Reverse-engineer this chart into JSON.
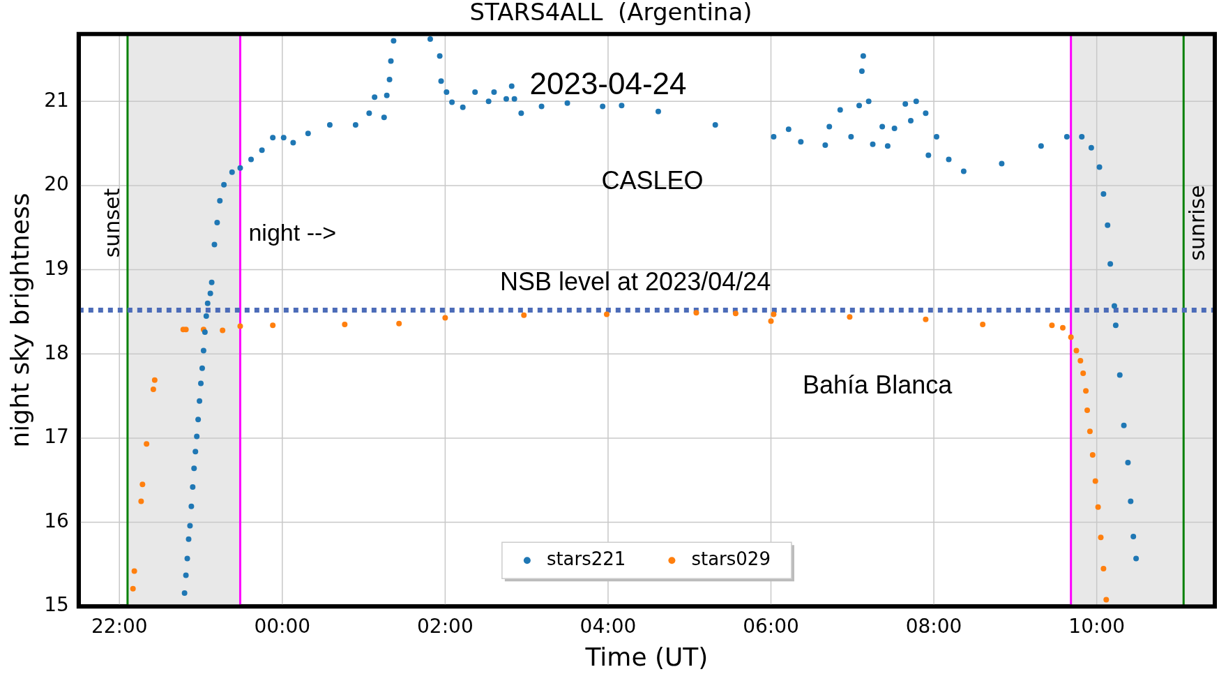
{
  "chart_data": {
    "type": "scatter",
    "title": "STARS4ALL  (Argentina)",
    "xlabel": "Time (UT)",
    "ylabel": "night sky brightness",
    "xlim": [
      "2023-04-23T21:30",
      "2023-04-24T11:27"
    ],
    "ylim": [
      15,
      21.8
    ],
    "xticks": [
      {
        "value": "2023-04-23T22:00",
        "label": "22:00"
      },
      {
        "value": "2023-04-24T00:00",
        "label": "00:00"
      },
      {
        "value": "2023-04-24T02:00",
        "label": "02:00"
      },
      {
        "value": "2023-04-24T04:00",
        "label": "04:00"
      },
      {
        "value": "2023-04-24T06:00",
        "label": "06:00"
      },
      {
        "value": "2023-04-24T08:00",
        "label": "08:00"
      },
      {
        "value": "2023-04-24T10:00",
        "label": "10:00"
      }
    ],
    "yticks": [
      15,
      16,
      17,
      18,
      19,
      20,
      21
    ],
    "grid": true,
    "legend": "bottom",
    "marker": "circle",
    "series": [
      {
        "name": "stars221",
        "color": "#1f77b4",
        "x": [
          "2023-04-23T22:48",
          "2023-04-23T22:49",
          "2023-04-23T22:50",
          "2023-04-23T22:51",
          "2023-04-23T22:52",
          "2023-04-23T22:53",
          "2023-04-23T22:54",
          "2023-04-23T22:55",
          "2023-04-23T22:56",
          "2023-04-23T22:57",
          "2023-04-23T22:58",
          "2023-04-23T22:59",
          "2023-04-23T23:00",
          "2023-04-23T23:01",
          "2023-04-23T23:02",
          "2023-04-23T23:03",
          "2023-04-23T23:04",
          "2023-04-23T23:05",
          "2023-04-23T23:07",
          "2023-04-23T23:08",
          "2023-04-23T23:10",
          "2023-04-23T23:12",
          "2023-04-23T23:14",
          "2023-04-23T23:17",
          "2023-04-23T23:23",
          "2023-04-23T23:29",
          "2023-04-23T23:37",
          "2023-04-23T23:45",
          "2023-04-23T23:53",
          "2023-04-24T00:01",
          "2023-04-24T00:08",
          "2023-04-24T00:19",
          "2023-04-24T00:35",
          "2023-04-24T00:54",
          "2023-04-24T01:04",
          "2023-04-24T01:08",
          "2023-04-24T01:15",
          "2023-04-24T01:17",
          "2023-04-24T01:19",
          "2023-04-24T01:20",
          "2023-04-24T01:22",
          "2023-04-24T01:49",
          "2023-04-24T01:56",
          "2023-04-24T01:57",
          "2023-04-24T02:01",
          "2023-04-24T02:05",
          "2023-04-24T02:13",
          "2023-04-24T02:22",
          "2023-04-24T02:32",
          "2023-04-24T02:36",
          "2023-04-24T02:45",
          "2023-04-24T02:49",
          "2023-04-24T02:51",
          "2023-04-24T02:56",
          "2023-04-24T03:11",
          "2023-04-24T03:30",
          "2023-04-24T03:56",
          "2023-04-24T04:10",
          "2023-04-24T04:37",
          "2023-04-24T05:19",
          "2023-04-24T06:02",
          "2023-04-24T06:13",
          "2023-04-24T06:22",
          "2023-04-24T06:40",
          "2023-04-24T06:43",
          "2023-04-24T06:51",
          "2023-04-24T06:59",
          "2023-04-24T07:05",
          "2023-04-24T07:07",
          "2023-04-24T07:08",
          "2023-04-24T07:12",
          "2023-04-24T07:15",
          "2023-04-24T07:22",
          "2023-04-24T07:26",
          "2023-04-24T07:31",
          "2023-04-24T07:39",
          "2023-04-24T07:43",
          "2023-04-24T07:47",
          "2023-04-24T07:54",
          "2023-04-24T07:56",
          "2023-04-24T08:02",
          "2023-04-24T08:11",
          "2023-04-24T08:22",
          "2023-04-24T08:50",
          "2023-04-24T09:19",
          "2023-04-24T09:38",
          "2023-04-24T09:49",
          "2023-04-24T09:56",
          "2023-04-24T10:02",
          "2023-04-24T10:05",
          "2023-04-24T10:08",
          "2023-04-24T10:10",
          "2023-04-24T10:13",
          "2023-04-24T10:14",
          "2023-04-24T10:17",
          "2023-04-24T10:20",
          "2023-04-24T10:23",
          "2023-04-24T10:25",
          "2023-04-24T10:27",
          "2023-04-24T10:29"
        ],
        "values": [
          15.16,
          15.37,
          15.57,
          15.8,
          15.96,
          16.19,
          16.42,
          16.64,
          16.84,
          17.02,
          17.22,
          17.44,
          17.65,
          17.83,
          18.04,
          18.26,
          18.45,
          18.6,
          18.72,
          18.85,
          19.3,
          19.56,
          19.82,
          20.01,
          20.16,
          20.21,
          20.31,
          20.42,
          20.57,
          20.57,
          20.51,
          20.62,
          20.72,
          20.72,
          20.86,
          21.05,
          20.81,
          21.07,
          21.26,
          21.48,
          21.72,
          21.74,
          21.54,
          21.24,
          21.11,
          20.99,
          20.93,
          21.11,
          21.0,
          21.11,
          21.03,
          21.18,
          21.03,
          20.86,
          20.94,
          20.98,
          20.94,
          20.95,
          20.88,
          20.72,
          20.58,
          20.67,
          20.52,
          20.48,
          20.7,
          20.9,
          20.58,
          20.95,
          21.36,
          21.54,
          21.0,
          20.49,
          20.7,
          20.47,
          20.68,
          20.97,
          20.77,
          21.0,
          20.86,
          20.36,
          20.58,
          20.31,
          20.17,
          20.26,
          20.47,
          20.58,
          20.58,
          20.45,
          20.22,
          19.9,
          19.53,
          19.07,
          18.57,
          18.34,
          17.75,
          17.15,
          16.71,
          16.25,
          15.83,
          15.57
        ]
      },
      {
        "name": "stars029",
        "color": "#ff7f0e",
        "x": [
          "2023-04-23T22:10",
          "2023-04-23T22:11",
          "2023-04-23T22:16",
          "2023-04-23T22:17",
          "2023-04-23T22:20",
          "2023-04-23T22:25",
          "2023-04-23T22:26",
          "2023-04-23T22:47",
          "2023-04-23T22:49",
          "2023-04-23T23:02",
          "2023-04-23T23:16",
          "2023-04-23T23:29",
          "2023-04-23T23:53",
          "2023-04-24T00:46",
          "2023-04-24T01:26",
          "2023-04-24T02:00",
          "2023-04-24T02:58",
          "2023-04-24T03:59",
          "2023-04-24T05:05",
          "2023-04-24T05:34",
          "2023-04-24T06:00",
          "2023-04-24T06:02",
          "2023-04-24T06:58",
          "2023-04-24T07:54",
          "2023-04-24T08:36",
          "2023-04-24T09:27",
          "2023-04-24T09:35",
          "2023-04-24T09:41",
          "2023-04-24T09:45",
          "2023-04-24T09:48",
          "2023-04-24T09:50",
          "2023-04-24T09:52",
          "2023-04-24T09:53",
          "2023-04-24T09:55",
          "2023-04-24T09:57",
          "2023-04-24T09:59",
          "2023-04-24T10:01",
          "2023-04-24T10:03",
          "2023-04-24T10:05",
          "2023-04-24T10:07"
        ],
        "values": [
          15.21,
          15.42,
          16.25,
          16.45,
          16.93,
          17.58,
          17.69,
          18.29,
          18.29,
          18.29,
          18.28,
          18.33,
          18.34,
          18.35,
          18.36,
          18.43,
          18.46,
          18.47,
          18.49,
          18.48,
          18.39,
          18.47,
          18.44,
          18.41,
          18.35,
          18.34,
          18.31,
          18.2,
          18.04,
          17.92,
          17.77,
          17.56,
          17.33,
          17.08,
          16.8,
          16.49,
          16.18,
          15.82,
          15.45,
          15.08
        ]
      }
    ],
    "ref_lines": [
      {
        "axis": "x",
        "value": "2023-04-23T22:06",
        "label": "sunset",
        "color": "#008000"
      },
      {
        "axis": "x",
        "value": "2023-04-24T11:04",
        "label": "sunrise",
        "color": "#008000"
      },
      {
        "axis": "x",
        "value": "2023-04-23T23:29",
        "label": "night -->",
        "color": "#ff00ff"
      },
      {
        "axis": "x",
        "value": "2023-04-24T09:41",
        "color": "#ff00ff"
      },
      {
        "axis": "y",
        "value": 18.52,
        "label": "NSB level at 2023/04/24",
        "color": "#4c6cb8",
        "line_style": "dotted"
      }
    ],
    "bands": [
      {
        "axis": "x",
        "from": "2023-04-23T22:06",
        "to": "2023-04-23T23:29",
        "color": "#e8e8e8"
      },
      {
        "axis": "x",
        "from": "2023-04-24T09:41",
        "to": "2023-04-24T11:27",
        "color": "#e8e8e8"
      }
    ],
    "annotations": [
      "2023-04-24",
      "CASLEO",
      "Bahía Blanca"
    ]
  }
}
